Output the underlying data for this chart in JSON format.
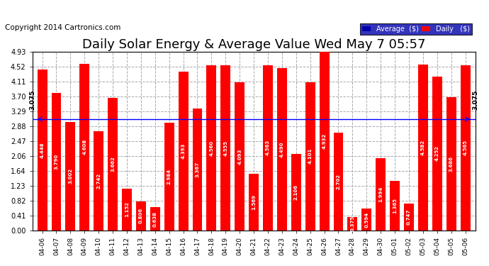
{
  "title": "Daily Solar Energy & Average Value Wed May 7 05:57",
  "copyright": "Copyright 2014 Cartronics.com",
  "categories": [
    "04-06",
    "04-07",
    "04-08",
    "04-09",
    "04-10",
    "04-11",
    "04-12",
    "04-13",
    "04-14",
    "04-15",
    "04-16",
    "04-17",
    "04-18",
    "04-19",
    "04-20",
    "04-21",
    "04-22",
    "04-23",
    "04-24",
    "04-25",
    "04-26",
    "04-27",
    "04-28",
    "04-29",
    "04-30",
    "05-01",
    "05-02",
    "05-03",
    "05-04",
    "05-05",
    "05-06"
  ],
  "values": [
    4.448,
    3.79,
    3.002,
    4.608,
    2.742,
    3.662,
    1.152,
    0.806,
    0.638,
    2.984,
    4.393,
    3.367,
    4.56,
    4.555,
    4.093,
    1.569,
    4.563,
    4.49,
    2.106,
    4.101,
    4.932,
    2.702,
    0.375,
    0.594,
    1.994,
    1.365,
    0.747,
    4.582,
    4.252,
    3.686,
    4.565
  ],
  "average": 3.075,
  "bar_color": "#ff0000",
  "avg_line_color": "#0000ff",
  "ylim": [
    0,
    4.93
  ],
  "yticks": [
    0.0,
    0.41,
    0.82,
    1.23,
    1.64,
    2.06,
    2.47,
    2.88,
    3.29,
    3.7,
    4.11,
    4.52,
    4.93
  ],
  "grid_color": "#aaaaaa",
  "bg_color": "#ffffff",
  "plot_bg_color": "#ffffff",
  "title_fontsize": 13,
  "copyright_fontsize": 7.5,
  "avg_label": "3.075",
  "legend_avg_color": "#0000aa",
  "legend_daily_color": "#ff0000",
  "legend_avg_text": "Average  ($)",
  "legend_daily_text": "Daily   ($)"
}
